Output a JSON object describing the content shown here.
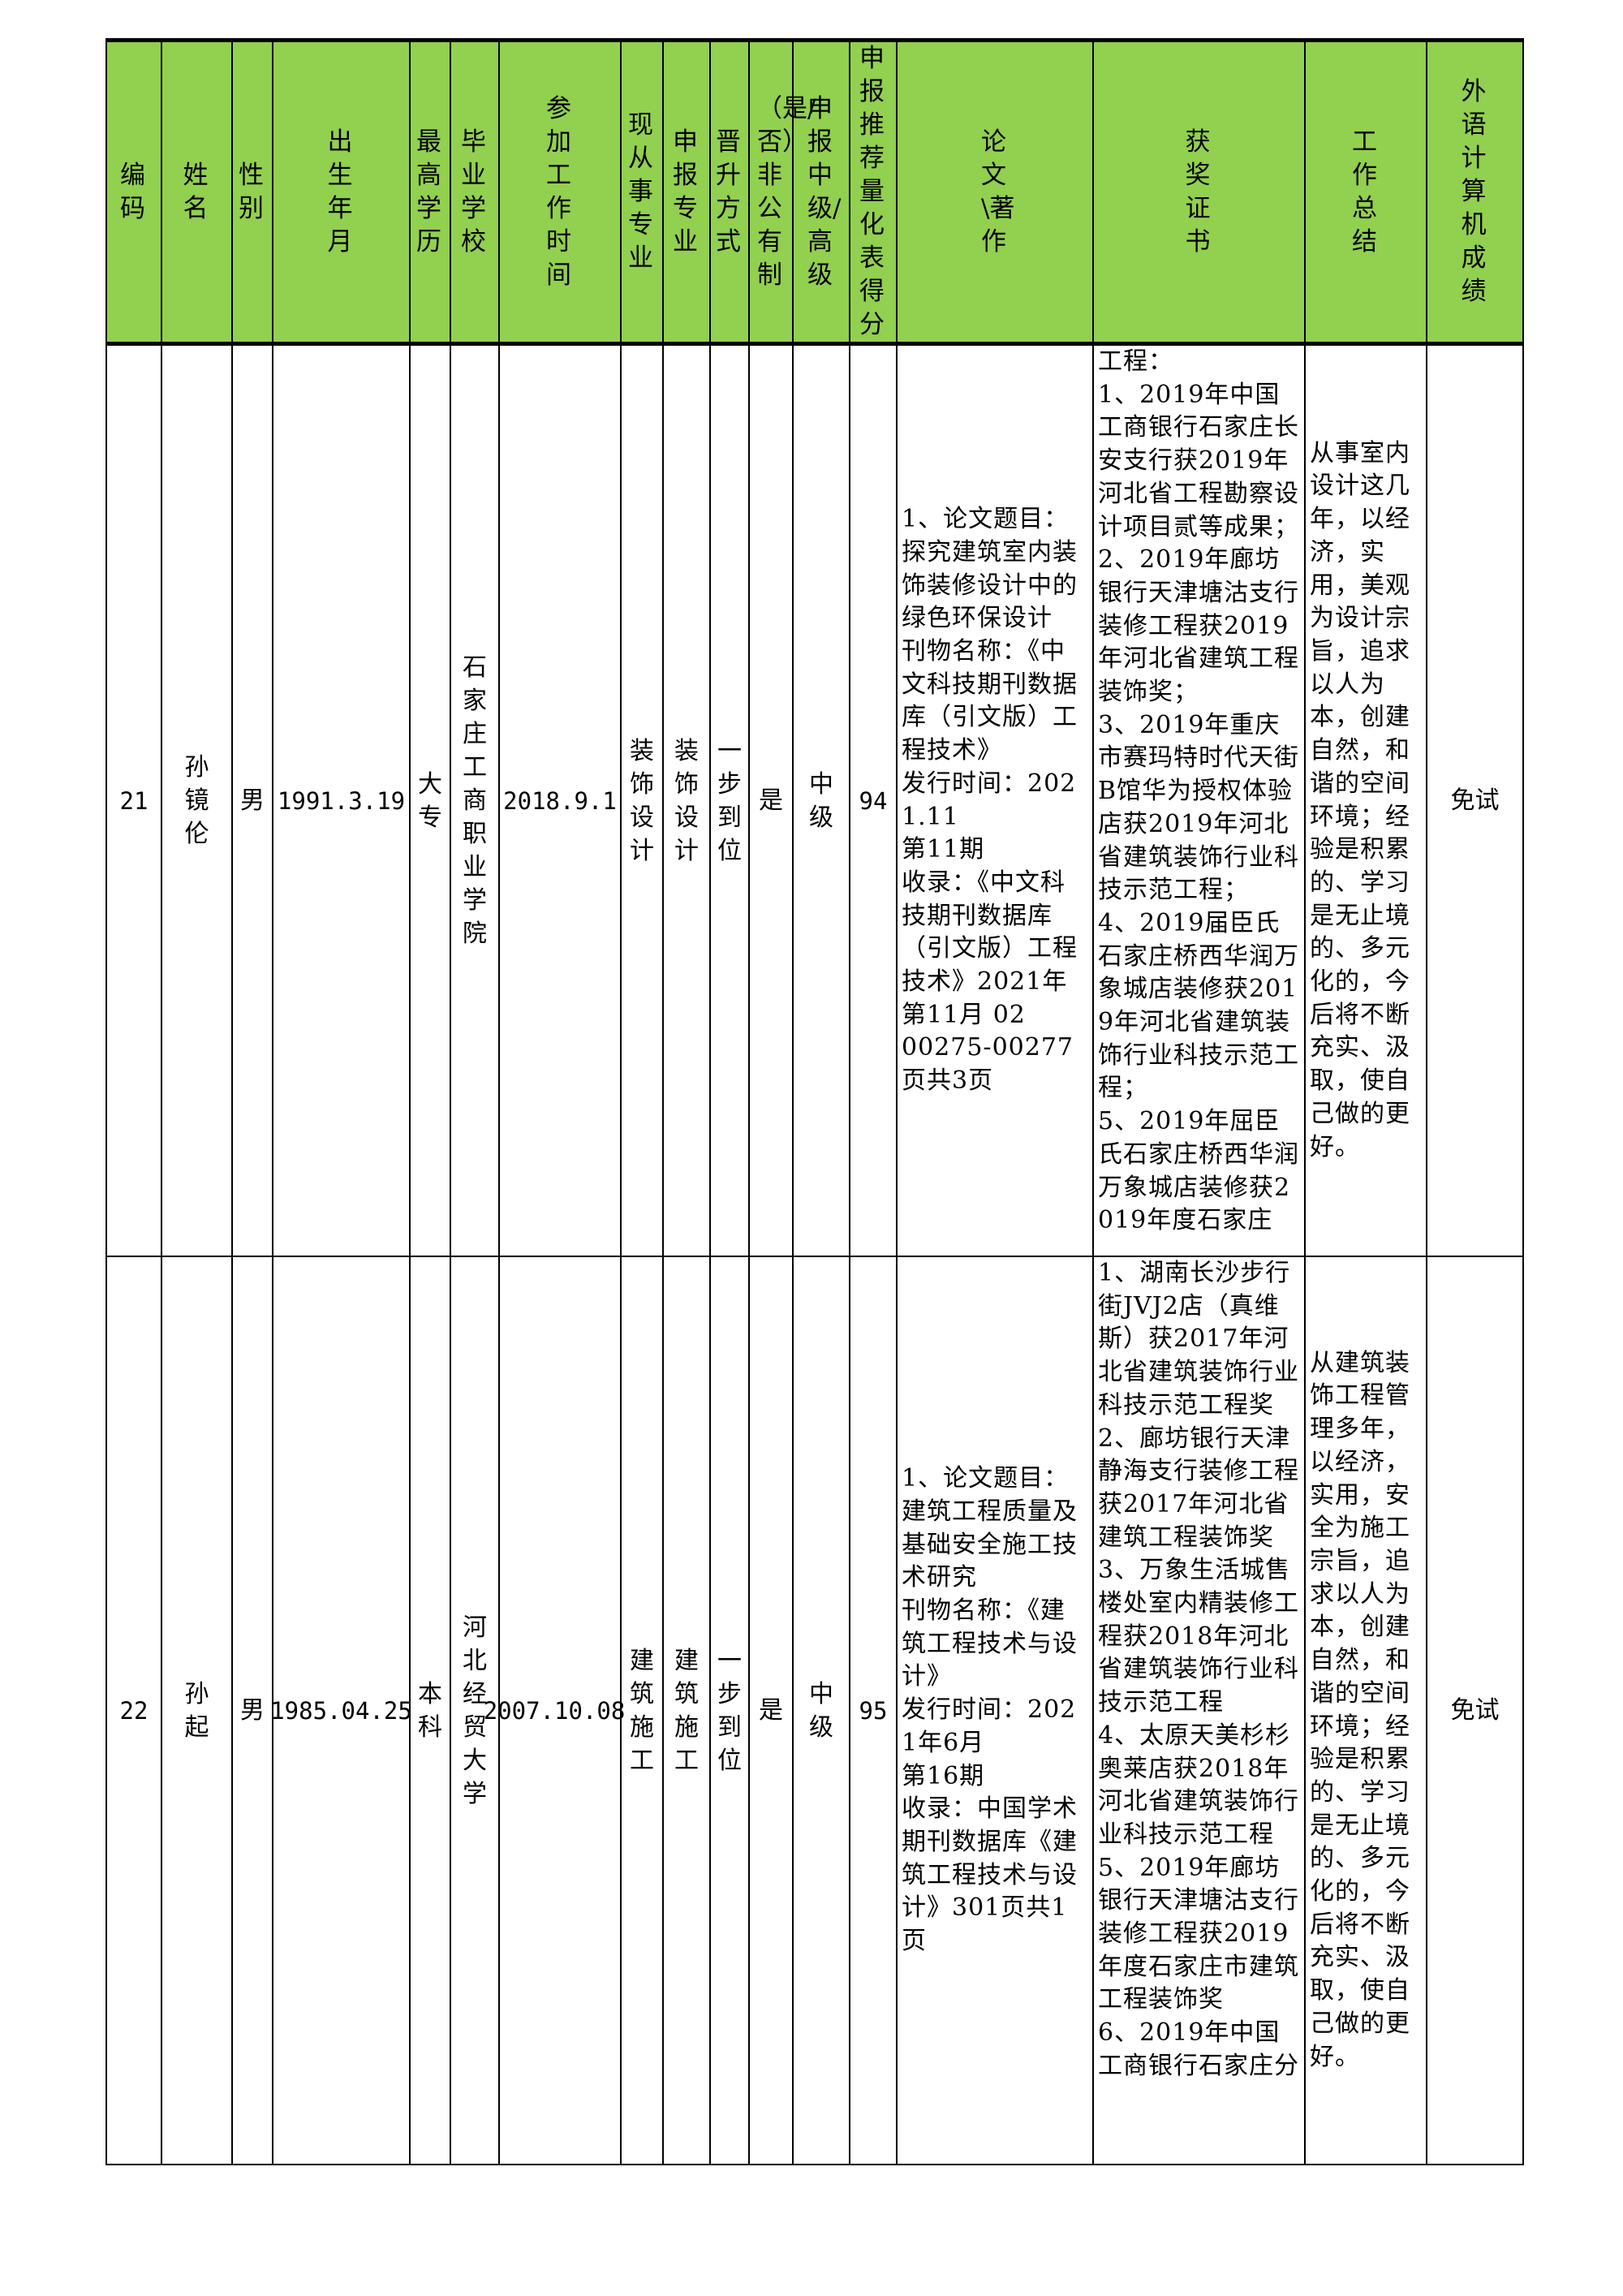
{
  "headers": [
    "编码",
    "姓名",
    "性别",
    "出生年月",
    "最高学历",
    "毕业学校",
    "参加工作时间",
    "现从事专业",
    "申报专业",
    "晋升方式",
    "（是/否）非公有制",
    "申报中级/高级",
    "申报推荐量化表得分",
    "论文\\著作",
    "获奖证书",
    "工作总结",
    "外语计算机成绩"
  ],
  "rows": [
    {
      "code": "21",
      "name": "孙镜伦",
      "gender": "男",
      "birth": "1991.3.19",
      "education": "大专",
      "school": "石家庄工商职业学院",
      "work_start": "2018.9.1",
      "current_major": "装饰设计",
      "apply_major": "装饰设计",
      "promotion": "一步到位",
      "non_public": "是",
      "level": "中级",
      "score": "94",
      "paper": "1、论文题目：探究建筑室内装饰装修设计中的绿色环保设计\n刊物名称：《中文科技期刊数据库（引文版）工程技术》\n发行时间：2021.11\n第11期\n收录：《中文科技期刊数据库（引文版）工程技术》2021年第11月 02\n00275-00277页共3页",
      "awards": "工程：\n1、2019年中国工商银行石家庄长安支行获2019年河北省工程勘察设计项目贰等成果；\n2、2019年廊坊银行天津塘沽支行装修工程获2019年河北省建筑工程装饰奖；\n3、2019年重庆市赛玛特时代天街B馆华为授权体验店获2019年河北省建筑装饰行业科技示范工程；\n4、2019届臣氏石家庄桥西华润万象城店装修获2019年河北省建筑装饰行业科技示范工程；\n5、2019年屈臣氏石家庄桥西华润万象城店装修获2019年度石家庄",
      "summary": "从事室内设计这几年，以经济，实用，美观为设计宗旨，追求以人为本，创建自然，和谐的空间环境；经验是积累的、学习是无止境的、多元化的，今后将不断充实、汲取，使自己做的更好。",
      "foreign": "免试"
    },
    {
      "code": "22",
      "name": "孙起",
      "gender": "男",
      "birth": "1985.04.25",
      "education": "本科",
      "school": "河北经贸大学",
      "work_start": "2007.10.08",
      "current_major": "建筑施工",
      "apply_major": "建筑施工",
      "promotion": "一步到位",
      "non_public": "是",
      "level": "中级",
      "score": "95",
      "paper": "1、论文题目：建筑工程质量及基础安全施工技术研究\n刊物名称：《建筑工程技术与设计》\n发行时间：2021年6月\n第16期\n收录：中国学术期刊数据库《建筑工程技术与设计》301页共1页",
      "awards": "1、湖南长沙步行街JVJ2店（真维斯）获2017年河北省建筑装饰行业科技示范工程奖\n2、廊坊银行天津静海支行装修工程获2017年河北省建筑工程装饰奖\n3、万象生活城售楼处室内精装修工程获2018年河北省建筑装饰行业科技示范工程\n4、太原天美杉杉奥莱店获2018年河北省建筑装饰行业科技示范工程\n5、2019年廊坊银行天津塘沽支行装修工程获2019年度石家庄市建筑工程装饰奖\n6、2019年中国工商银行石家庄分",
      "summary": "从建筑装饰工程管理多年，以经济，实用，安全为施工宗旨，追求以人为本，创建自然，和谐的空间环境；经验是积累的、学习是无止境的、多元化的，今后将不断充实、汲取，使自己做的更好。",
      "foreign": "免试"
    }
  ],
  "colors": {
    "header_bg": "#92d050",
    "border": "#000000"
  }
}
